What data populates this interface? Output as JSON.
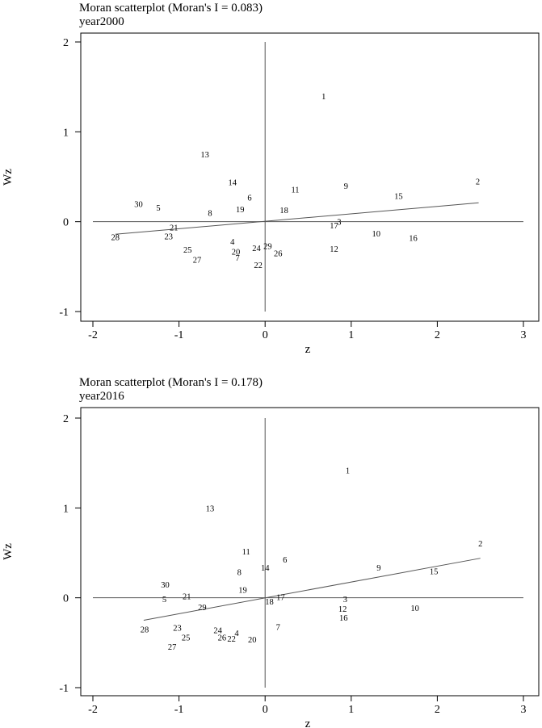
{
  "chart_data": [
    {
      "type": "scatter",
      "title": "Moran scatterplot (Moran's I = 0.083)",
      "subtitle": "year2000",
      "xlabel": "z",
      "ylabel": "Wz",
      "xlim": [
        -2,
        3
      ],
      "ylim": [
        -1,
        2
      ],
      "xticks": [
        -2,
        -1,
        0,
        1,
        2,
        3
      ],
      "yticks": [
        -1,
        0,
        1,
        2
      ],
      "xtick_labels": [
        "-2",
        "-1",
        "0",
        "1",
        "2",
        "3"
      ],
      "ytick_labels": [
        "-1",
        "0",
        "1",
        "2"
      ],
      "fit_line": {
        "x": [
          -1.74,
          2.48
        ],
        "y": [
          -0.14,
          0.21
        ]
      },
      "points": [
        {
          "label": "1",
          "x": 0.68,
          "y": 1.4
        },
        {
          "label": "2",
          "x": 2.47,
          "y": 0.45
        },
        {
          "label": "3",
          "x": 0.86,
          "y": 0.0
        },
        {
          "label": "4",
          "x": -0.38,
          "y": -0.22
        },
        {
          "label": "5",
          "x": -1.24,
          "y": 0.16
        },
        {
          "label": "6",
          "x": -0.18,
          "y": 0.27
        },
        {
          "label": "7",
          "x": -0.32,
          "y": -0.4
        },
        {
          "label": "8",
          "x": -0.64,
          "y": 0.1
        },
        {
          "label": "9",
          "x": 0.94,
          "y": 0.4
        },
        {
          "label": "10",
          "x": 1.29,
          "y": -0.13
        },
        {
          "label": "11",
          "x": 0.35,
          "y": 0.36
        },
        {
          "label": "12",
          "x": 0.8,
          "y": -0.3
        },
        {
          "label": "13",
          "x": -0.7,
          "y": 0.75
        },
        {
          "label": "14",
          "x": -0.38,
          "y": 0.44
        },
        {
          "label": "15",
          "x": 1.55,
          "y": 0.29
        },
        {
          "label": "16",
          "x": 1.72,
          "y": -0.18
        },
        {
          "label": "17",
          "x": 0.8,
          "y": -0.04
        },
        {
          "label": "18",
          "x": 0.22,
          "y": 0.13
        },
        {
          "label": "19",
          "x": -0.29,
          "y": 0.14
        },
        {
          "label": "20",
          "x": -0.34,
          "y": -0.33
        },
        {
          "label": "21",
          "x": -1.06,
          "y": -0.06
        },
        {
          "label": "22",
          "x": -0.08,
          "y": -0.48
        },
        {
          "label": "23",
          "x": -1.12,
          "y": -0.16
        },
        {
          "label": "24",
          "x": -0.1,
          "y": -0.29
        },
        {
          "label": "25",
          "x": -0.9,
          "y": -0.31
        },
        {
          "label": "26",
          "x": 0.15,
          "y": -0.35
        },
        {
          "label": "27",
          "x": -0.79,
          "y": -0.42
        },
        {
          "label": "28",
          "x": -1.74,
          "y": -0.17
        },
        {
          "label": "29",
          "x": 0.03,
          "y": -0.27
        },
        {
          "label": "30",
          "x": -1.47,
          "y": 0.2
        }
      ]
    },
    {
      "type": "scatter",
      "title": "Moran scatterplot (Moran's I = 0.178)",
      "subtitle": "year2016",
      "xlabel": "z",
      "ylabel": "Wz",
      "xlim": [
        -2,
        3
      ],
      "ylim": [
        -1,
        2
      ],
      "xticks": [
        -2,
        -1,
        0,
        1,
        2,
        3
      ],
      "yticks": [
        -1,
        0,
        1,
        2
      ],
      "xtick_labels": [
        "-2",
        "-1",
        "0",
        "1",
        "2",
        "3"
      ],
      "ytick_labels": [
        "-1",
        "0",
        "1",
        "2"
      ],
      "fit_line": {
        "x": [
          -1.41,
          2.5
        ],
        "y": [
          -0.25,
          0.44
        ]
      },
      "points": [
        {
          "label": "1",
          "x": 0.96,
          "y": 1.42
        },
        {
          "label": "2",
          "x": 2.5,
          "y": 0.61
        },
        {
          "label": "3",
          "x": 0.93,
          "y": -0.01
        },
        {
          "label": "4",
          "x": -0.33,
          "y": -0.39
        },
        {
          "label": "5",
          "x": -1.17,
          "y": -0.01
        },
        {
          "label": "6",
          "x": 0.23,
          "y": 0.43
        },
        {
          "label": "7",
          "x": 0.15,
          "y": -0.32
        },
        {
          "label": "8",
          "x": -0.3,
          "y": 0.29
        },
        {
          "label": "9",
          "x": 1.32,
          "y": 0.34
        },
        {
          "label": "10",
          "x": 1.74,
          "y": -0.11
        },
        {
          "label": "11",
          "x": -0.22,
          "y": 0.52
        },
        {
          "label": "12",
          "x": 0.9,
          "y": -0.12
        },
        {
          "label": "13",
          "x": -0.64,
          "y": 1.0
        },
        {
          "label": "14",
          "x": 0.0,
          "y": 0.34
        },
        {
          "label": "15",
          "x": 1.96,
          "y": 0.3
        },
        {
          "label": "16",
          "x": 0.91,
          "y": -0.22
        },
        {
          "label": "17",
          "x": 0.18,
          "y": 0.01
        },
        {
          "label": "18",
          "x": 0.05,
          "y": -0.04
        },
        {
          "label": "19",
          "x": -0.26,
          "y": 0.09
        },
        {
          "label": "20",
          "x": -0.15,
          "y": -0.46
        },
        {
          "label": "21",
          "x": -0.91,
          "y": 0.02
        },
        {
          "label": "22",
          "x": -0.39,
          "y": -0.45
        },
        {
          "label": "23",
          "x": -1.02,
          "y": -0.33
        },
        {
          "label": "24",
          "x": -0.55,
          "y": -0.36
        },
        {
          "label": "25",
          "x": -0.92,
          "y": -0.44
        },
        {
          "label": "26",
          "x": -0.5,
          "y": -0.44
        },
        {
          "label": "27",
          "x": -1.08,
          "y": -0.54
        },
        {
          "label": "28",
          "x": -1.4,
          "y": -0.35
        },
        {
          "label": "29",
          "x": -0.73,
          "y": -0.1
        },
        {
          "label": "30",
          "x": -1.16,
          "y": 0.15
        }
      ]
    }
  ]
}
